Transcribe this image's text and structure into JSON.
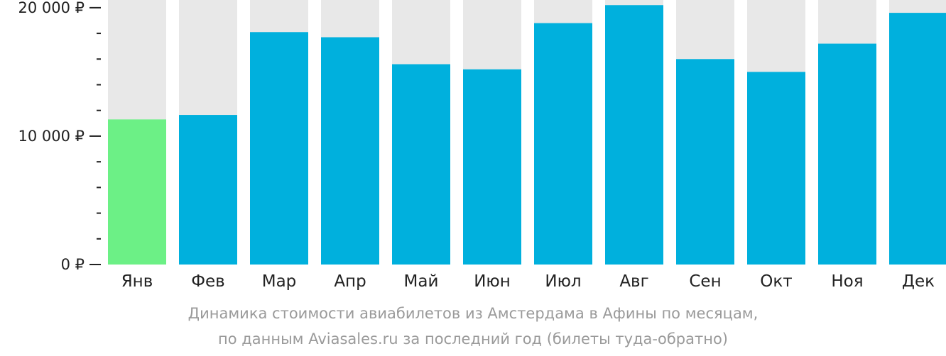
{
  "chart_data": {
    "type": "bar",
    "categories": [
      "Янв",
      "Фев",
      "Мар",
      "Апр",
      "Май",
      "Июн",
      "Июл",
      "Авг",
      "Сен",
      "Окт",
      "Ноя",
      "Дек"
    ],
    "values": [
      11300,
      11650,
      18100,
      17700,
      15600,
      15200,
      18800,
      20200,
      16000,
      15000,
      17200,
      19600
    ],
    "ylim": [
      0,
      20600
    ],
    "yticks": [
      {
        "value": 0,
        "label": "0 ₽"
      },
      {
        "value": 10000,
        "label": "10 000 ₽"
      },
      {
        "value": 20000,
        "label": "20 000 ₽"
      }
    ],
    "minor_tick_step": 2000,
    "highlight_index": 0,
    "colors": {
      "bar": "#00b0dd",
      "highlight": "#6cf086",
      "background_bar": "#e8e8e8",
      "axis": "#222222"
    },
    "caption": [
      "Динамика стоимости авиабилетов из Амстердама в Афины по месяцам,",
      "по данным Aviasales.ru за последний год (билеты туда-обратно)"
    ]
  }
}
